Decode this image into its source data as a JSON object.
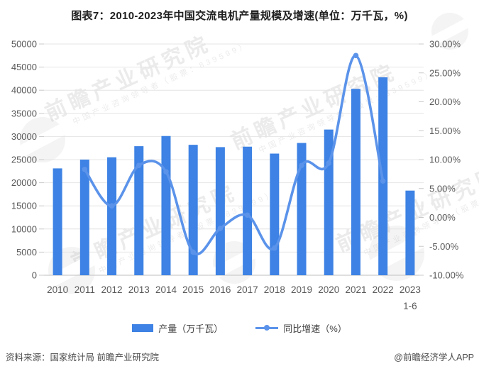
{
  "title": "图表7：2010-2023年中国交流电机产量规模及增速(单位：万千瓦，%)",
  "chart_data": {
    "type": "bar",
    "combo": "bar+line",
    "categories": [
      "2010",
      "2011",
      "2012",
      "2013",
      "2014",
      "2015",
      "2016",
      "2017",
      "2018",
      "2019",
      "2020",
      "2021",
      "2022",
      "2023"
    ],
    "category_sublabels": {
      "2023": "1-6"
    },
    "series": [
      {
        "name": "产量（万千瓦）",
        "type": "bar",
        "axis": "left",
        "color": "#3d82e4",
        "values": [
          23100,
          25000,
          25500,
          27900,
          30100,
          28200,
          27700,
          27800,
          26300,
          28600,
          31500,
          40300,
          42800,
          18300
        ]
      },
      {
        "name": "同比增速（%）",
        "type": "line",
        "axis": "right",
        "color": "#5b93ea",
        "start_index": 1,
        "values": [
          8.3,
          2.0,
          9.0,
          7.9,
          -6.0,
          -1.9,
          0.4,
          -5.3,
          9.0,
          9.4,
          28.0,
          6.3
        ]
      }
    ],
    "left_axis": {
      "min": 0,
      "max": 50000,
      "step": 5000,
      "tick_labels": [
        "0",
        "5000",
        "10000",
        "15000",
        "20000",
        "25000",
        "30000",
        "35000",
        "40000",
        "45000",
        "50000"
      ]
    },
    "right_axis": {
      "min": -10,
      "max": 30,
      "step": 5,
      "tick_labels": [
        "-10.00%",
        "-5.00%",
        "0.00%",
        "5.00%",
        "10.00%",
        "15.00%",
        "20.00%",
        "25.00%",
        "30.00%"
      ]
    },
    "grid": "horizontal-on",
    "legend_position": "bottom"
  },
  "colors": {
    "bar": "#3d82e4",
    "line": "#5b93ea",
    "grid": "#e4e4e4",
    "axis_line": "#bfbfbf",
    "tick": "#c9c9c9",
    "axis_text": "#595959"
  },
  "footer": {
    "source": "资料来源：国家统计局 前瞻产业研究院",
    "credit": "@前瞻经济学人APP"
  },
  "watermark": {
    "text": "前瞻产业研究院",
    "subtext": "中国产业咨询领导者（股票：839599）"
  }
}
